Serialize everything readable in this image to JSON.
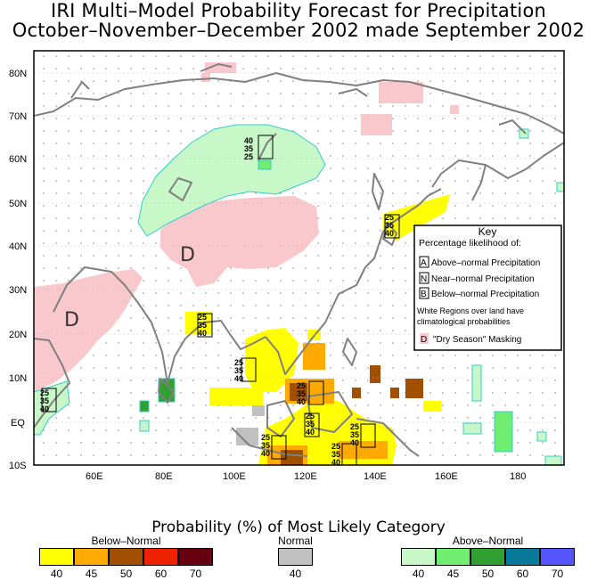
{
  "title_line1": "IRI Multi–Model Probability Forecast for Precipitation",
  "title_line2": "October–November–December 2002 made September 2002",
  "map": {
    "lat_labels": [
      "80N",
      "70N",
      "60N",
      "50N",
      "40N",
      "30N",
      "20N",
      "10N",
      "EQ",
      "10S"
    ],
    "lon_labels": [
      "60E",
      "80E",
      "100E",
      "120E",
      "140E",
      "160E",
      "180"
    ],
    "dry_marks": [
      "D",
      "D"
    ],
    "prob_labels": [
      "40",
      "35",
      "25"
    ],
    "key": {
      "heading": "Key",
      "subheading": "Percentage likelihood of:",
      "items": [
        {
          "letter": "A",
          "text": "Above–normal Precipitation"
        },
        {
          "letter": "N",
          "text": "Near–normal Precipitation"
        },
        {
          "letter": "B",
          "text": "Below–normal Precipitation"
        }
      ],
      "note_line1": "White Regions over land have",
      "note_line2": "climatological probabilities",
      "dry_letter": "D",
      "dry_text": "\"Dry Season\" Masking"
    }
  },
  "legend": {
    "title": "Probability (%) of Most Likely Category",
    "groups": [
      {
        "label": "Below–Normal",
        "colors": [
          "#ffff00",
          "#ffaa00",
          "#a05000",
          "#ee2200",
          "#660011"
        ],
        "ticks": [
          "40",
          "45",
          "50",
          "60",
          "70"
        ]
      },
      {
        "label": "Normal",
        "colors": [
          "#c0c0c0"
        ],
        "ticks": [
          "40"
        ]
      },
      {
        "label": "Above–Normal",
        "colors": [
          "#c8f8c8",
          "#70ee70",
          "#30a030",
          "#0a7a9a",
          "#5555ff"
        ],
        "ticks": [
          "40",
          "45",
          "50",
          "60",
          "70"
        ]
      }
    ]
  }
}
